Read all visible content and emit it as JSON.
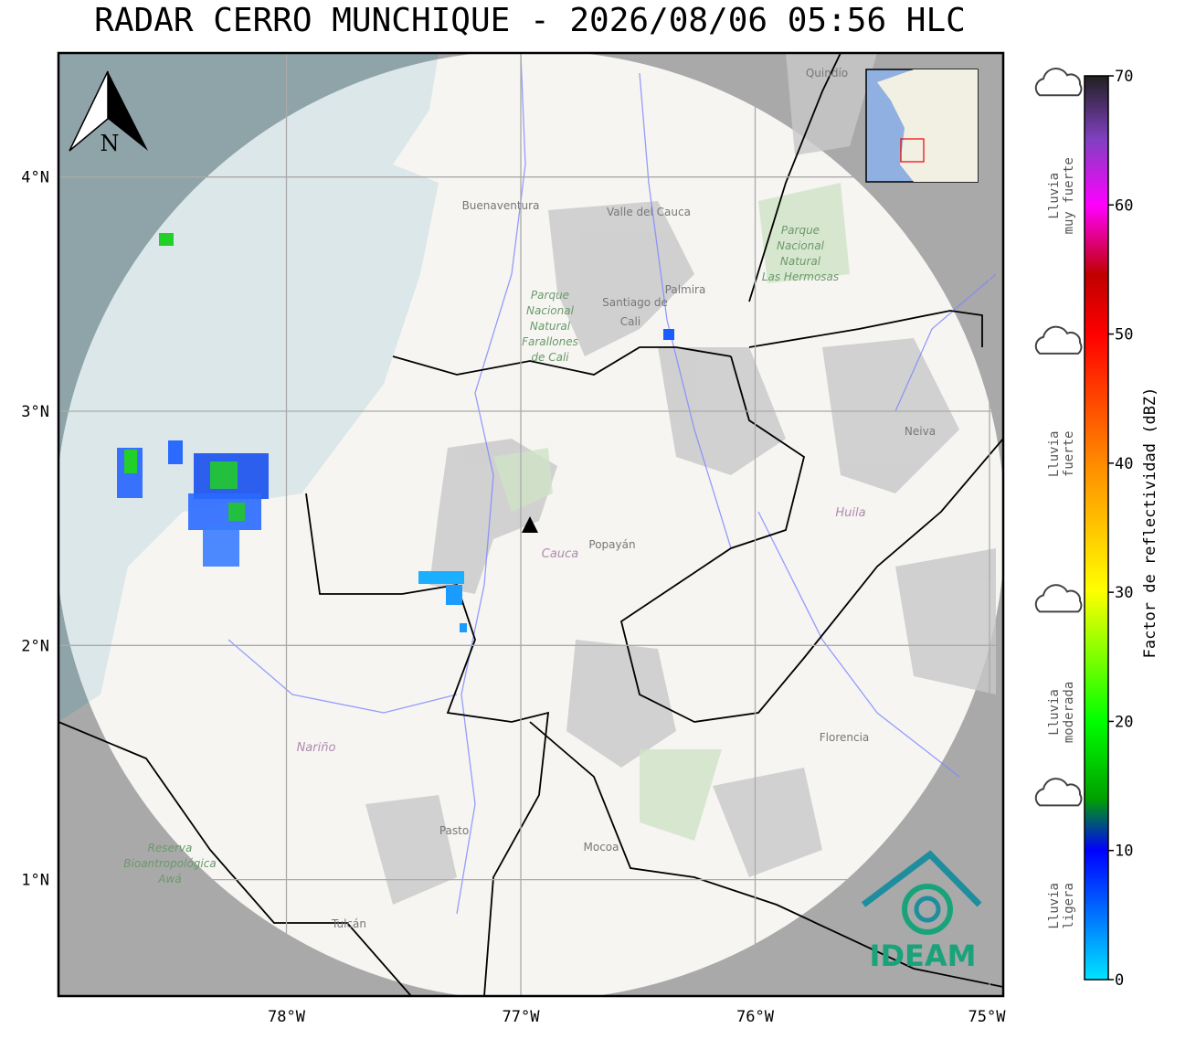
{
  "title": "RADAR CERRO MUNCHIQUE - 2026/08/06 05:56 HLC",
  "map": {
    "lon_ticks": [
      {
        "value": -78,
        "label": "78°W"
      },
      {
        "value": -77,
        "label": "77°W"
      },
      {
        "value": -76,
        "label": "76°W"
      },
      {
        "value": -75,
        "label": "75°W"
      }
    ],
    "lat_ticks": [
      {
        "value": 4,
        "label": "4°N"
      },
      {
        "value": 3,
        "label": "3°N"
      },
      {
        "value": 2,
        "label": "2°N"
      },
      {
        "value": 1,
        "label": "1°N"
      }
    ],
    "north": "N",
    "places": [
      "Buenaventura",
      "Valle del Cauca",
      "Santiago de",
      "Cali",
      "Palmira",
      "Neiva",
      "Popayán",
      "Pasto",
      "Mocoa",
      "Florencia",
      "Tulcán",
      "Quindío"
    ],
    "departments": [
      "Huila",
      "Cauca",
      "Nariño"
    ],
    "parks": [
      [
        "Parque",
        "Nacional",
        "Natural",
        "Farallones",
        "de Cali"
      ],
      [
        "Parque",
        "Nacional",
        "Natural",
        "Las Hermosas"
      ],
      [
        "Reserva",
        "Bioantropológica",
        "Awá"
      ]
    ],
    "logo": "IDEAM"
  },
  "colorbar": {
    "range": [
      0,
      70
    ],
    "ticks": [
      0,
      10,
      20,
      30,
      40,
      50,
      60,
      70
    ],
    "label": "Factor de reflectividad (dBZ)"
  },
  "rain_levels": [
    {
      "lines": [
        "Lluvia",
        "muy fuerte"
      ],
      "dbz": 60
    },
    {
      "lines": [
        "Lluvia",
        "fuerte"
      ],
      "dbz": 40
    },
    {
      "lines": [
        "Lluvia",
        "moderada"
      ],
      "dbz": 20
    },
    {
      "lines": [
        "Lluvia",
        "ligera"
      ],
      "dbz": 5
    }
  ]
}
